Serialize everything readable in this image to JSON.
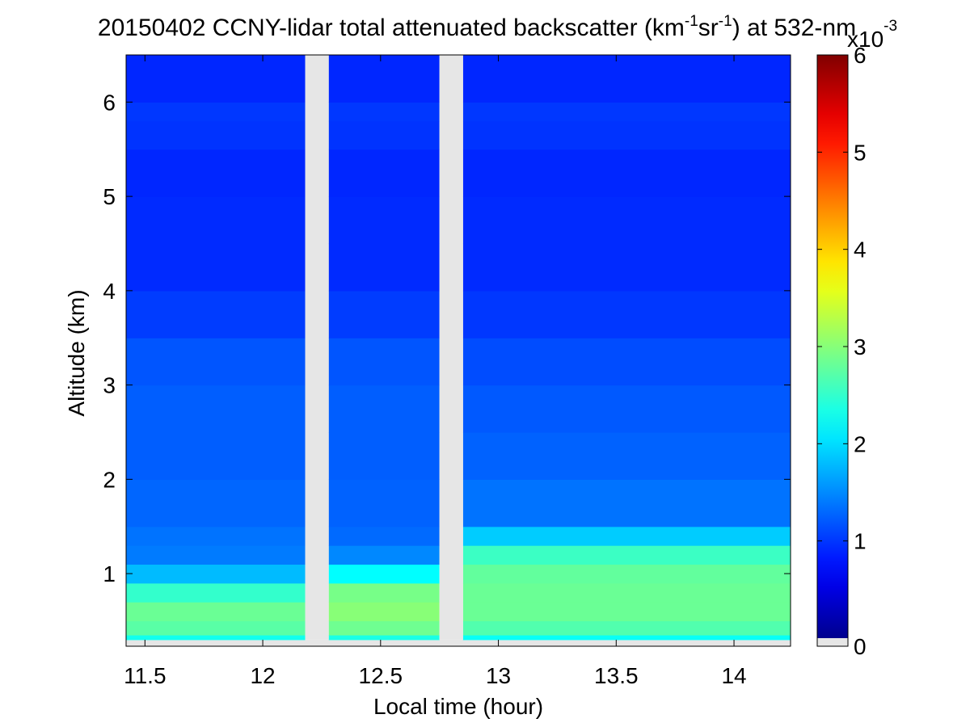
{
  "chart_data": {
    "type": "heatmap",
    "title_main": "20150402 CCNY-lidar total attenuated backscatter (km",
    "title_sup1": "-1",
    "title_mid": "sr",
    "title_sup2": "-1",
    "title_end": ") at 532-nm",
    "xlabel": "Local time (hour)",
    "ylabel": "Altitude (km)",
    "xlim": [
      11.42,
      14.24
    ],
    "ylim": [
      0.23,
      6.5
    ],
    "x_ticks": [
      11.5,
      12,
      12.5,
      13,
      13.5,
      14
    ],
    "x_tick_labels": [
      "11.5",
      "12",
      "12.5",
      "13",
      "13.5",
      "14"
    ],
    "y_ticks": [
      1,
      2,
      3,
      4,
      5,
      6
    ],
    "y_tick_labels": [
      "1",
      "2",
      "3",
      "4",
      "5",
      "6"
    ],
    "data_ylim": [
      0.3,
      6.5
    ],
    "data_gaps": [
      [
        12.18,
        12.28
      ],
      [
        12.75,
        12.85
      ]
    ],
    "colorbar": {
      "colormap": "jet",
      "range": [
        0,
        6
      ],
      "ticks": [
        0,
        1,
        2,
        3,
        4,
        5,
        6
      ],
      "tick_labels": [
        "0",
        "1",
        "2",
        "3",
        "4",
        "5",
        "6"
      ],
      "scale_base": "x10",
      "scale_exp": "-3",
      "nodata_color": "#e6e6e6"
    },
    "backscatter_profile": {
      "altitudes_km": [
        0.3,
        0.35,
        0.5,
        0.7,
        0.9,
        1.1,
        1.3,
        1.5,
        2.0,
        2.5,
        3.0,
        3.5,
        4.0,
        4.5,
        5.0,
        5.5,
        5.8,
        6.0,
        6.5
      ],
      "period_A_x": [
        11.42,
        12.18
      ],
      "period_A_values": [
        2.0,
        2.7,
        2.85,
        2.9,
        2.2,
        1.5,
        1.45,
        1.4,
        1.3,
        1.3,
        1.3,
        1.2,
        1.0,
        1.0,
        1.0,
        0.95,
        1.15,
        1.0,
        0.95
      ],
      "period_B_x": [
        12.28,
        12.75
      ],
      "period_B_values": [
        2.0,
        2.8,
        3.0,
        3.1,
        2.8,
        1.7,
        1.4,
        1.35,
        1.3,
        1.3,
        1.3,
        1.2,
        1.0,
        1.0,
        1.0,
        0.95,
        1.15,
        1.0,
        0.95
      ],
      "period_C_x": [
        12.85,
        14.24
      ],
      "period_C_values": [
        2.0,
        2.6,
        2.85,
        2.9,
        2.85,
        2.8,
        2.4,
        1.5,
        1.35,
        1.3,
        1.25,
        1.15,
        1.0,
        1.0,
        1.0,
        0.95,
        1.15,
        1.0,
        0.95
      ],
      "boundary_layer_top_km": {
        "x": [
          11.42,
          12.18,
          12.28,
          12.75,
          12.85,
          13.5,
          14.0,
          14.24
        ],
        "top": [
          0.9,
          0.9,
          1.0,
          1.1,
          1.2,
          1.35,
          1.45,
          1.6
        ]
      }
    }
  }
}
